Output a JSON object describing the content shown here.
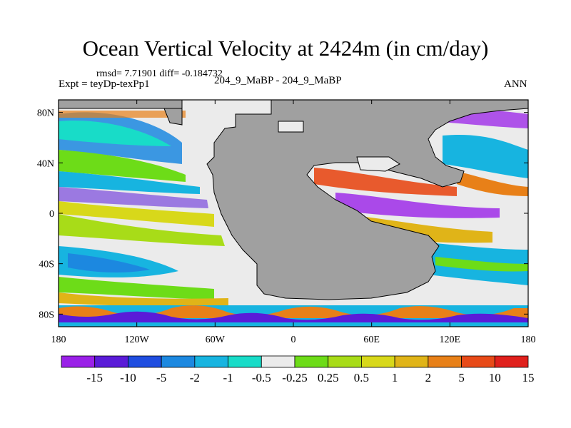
{
  "title": "Ocean Vertical Velocity at 2424m (in cm/day)",
  "stats": "rmsd= 7.71901 diff= -0.184732",
  "subtitle_left": "Expt = teyDp-texPp1",
  "subtitle_center": "204_9_MaBP - 204_9_MaBP",
  "subtitle_right": "ANN",
  "map": {
    "lon_range": [
      -180,
      180
    ],
    "lat_range": [
      -90,
      90
    ],
    "land_color": "#a0a0a0",
    "ocean_neutral_color": "#ebebeb",
    "x_ticks": [
      {
        "lon": -180,
        "label": "180"
      },
      {
        "lon": -120,
        "label": "120W"
      },
      {
        "lon": -60,
        "label": "60W"
      },
      {
        "lon": 0,
        "label": "0"
      },
      {
        "lon": 60,
        "label": "60E"
      },
      {
        "lon": 120,
        "label": "120E"
      },
      {
        "lon": 180,
        "label": "180"
      }
    ],
    "y_ticks": [
      {
        "lat": 80,
        "label": "80N"
      },
      {
        "lat": 40,
        "label": "40N"
      },
      {
        "lat": 0,
        "label": "0"
      },
      {
        "lat": -40,
        "label": "40S"
      },
      {
        "lat": -80,
        "label": "80S"
      }
    ]
  },
  "colorbar": {
    "colors": [
      "#9a20e8",
      "#5a1bd8",
      "#1f4de0",
      "#1c88e0",
      "#17b4e0",
      "#18dcc8",
      "#ebebeb",
      "#6ddc18",
      "#a8dc18",
      "#d8d81a",
      "#e0b418",
      "#e88018",
      "#e84a18",
      "#e0201c"
    ],
    "labels": [
      "-15",
      "-10",
      "-5",
      "-2",
      "-1",
      "-0.5",
      "-0.25",
      "0.25",
      "0.5",
      "1",
      "2",
      "5",
      "10",
      "15"
    ]
  }
}
